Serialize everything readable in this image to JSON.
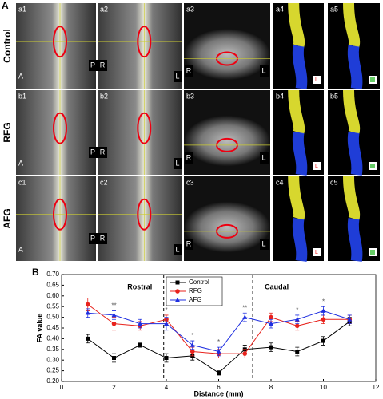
{
  "panel_a": {
    "label": "A",
    "rows": [
      {
        "label": "Control",
        "panels": [
          "a1",
          "a2",
          "a3",
          "a4",
          "a5"
        ],
        "orientation": [
          "A",
          "P",
          "R",
          "L",
          "R",
          "L",
          "L"
        ]
      },
      {
        "label": "RFG",
        "panels": [
          "b1",
          "b2",
          "b3",
          "b4",
          "b5"
        ],
        "orientation": [
          "A",
          "P",
          "R",
          "L",
          "R",
          "L",
          "L"
        ]
      },
      {
        "label": "AFG",
        "panels": [
          "c1",
          "c2",
          "c3",
          "c4",
          "c5"
        ],
        "orientation": [
          "A",
          "P",
          "R",
          "L",
          "R",
          "L",
          "L"
        ]
      }
    ]
  },
  "chart_data": {
    "type": "line",
    "panel_label": "B",
    "xlabel": "Distance (mm)",
    "ylabel": "FA value",
    "xlim": [
      0,
      12
    ],
    "xticks": [
      0,
      2,
      4,
      6,
      8,
      10,
      12
    ],
    "ylim": [
      0.2,
      0.7
    ],
    "yticks": [
      {
        "value": 0.2,
        "label": "0.20"
      },
      {
        "value": 0.25,
        "label": "0.25"
      },
      {
        "value": 0.3,
        "label": "0.30"
      },
      {
        "value": 0.35,
        "label": "0.35"
      },
      {
        "value": 0.4,
        "label": "0.40"
      },
      {
        "value": 0.45,
        "label": "0.45"
      },
      {
        "value": 0.5,
        "label": "0.50"
      },
      {
        "value": 0.55,
        "label": "0.55"
      },
      {
        "value": 0.6,
        "label": "0.60"
      },
      {
        "value": 0.65,
        "label": "0.65"
      },
      {
        "value": 0.7,
        "label": "0.70"
      }
    ],
    "x": [
      1,
      2,
      3,
      4,
      5,
      6,
      7,
      8,
      9,
      10,
      11
    ],
    "series": [
      {
        "name": "Control",
        "color": "#000000",
        "marker": "square",
        "values": [
          0.4,
          0.31,
          0.37,
          0.31,
          0.32,
          0.24,
          0.35,
          0.36,
          0.34,
          0.39,
          0.48
        ],
        "errors": [
          0.02,
          0.02,
          0.01,
          0.02,
          0.02,
          0.01,
          0.02,
          0.02,
          0.02,
          0.02,
          0.02
        ]
      },
      {
        "name": "RFG",
        "color": "#e8221c",
        "marker": "circle",
        "values": [
          0.56,
          0.47,
          0.46,
          0.49,
          0.34,
          0.33,
          0.33,
          0.5,
          0.46,
          0.49,
          0.49
        ],
        "errors": [
          0.03,
          0.03,
          0.02,
          0.02,
          0.02,
          0.02,
          0.02,
          0.02,
          0.02,
          0.02,
          0.02
        ]
      },
      {
        "name": "AFG",
        "color": "#1f2fe0",
        "marker": "triangle",
        "values": [
          0.52,
          0.51,
          0.47,
          0.47,
          0.37,
          0.34,
          0.5,
          0.47,
          0.49,
          0.53,
          0.49
        ],
        "errors": [
          0.02,
          0.02,
          0.02,
          0.03,
          0.02,
          0.02,
          0.02,
          0.02,
          0.02,
          0.02,
          0.02
        ]
      }
    ],
    "dividers": [
      3.9,
      7.3
    ],
    "regions": [
      "Rostral",
      "Caudal"
    ],
    "annotations": [
      {
        "text": "**",
        "x": 2
      },
      {
        "text": "*",
        "x": 4
      },
      {
        "text": "*",
        "x": 5
      },
      {
        "text": "*",
        "x": 6
      },
      {
        "text": "**",
        "x": 7
      },
      {
        "text": "*",
        "x": 9
      },
      {
        "text": "*",
        "x": 10
      }
    ],
    "legend": "top"
  }
}
